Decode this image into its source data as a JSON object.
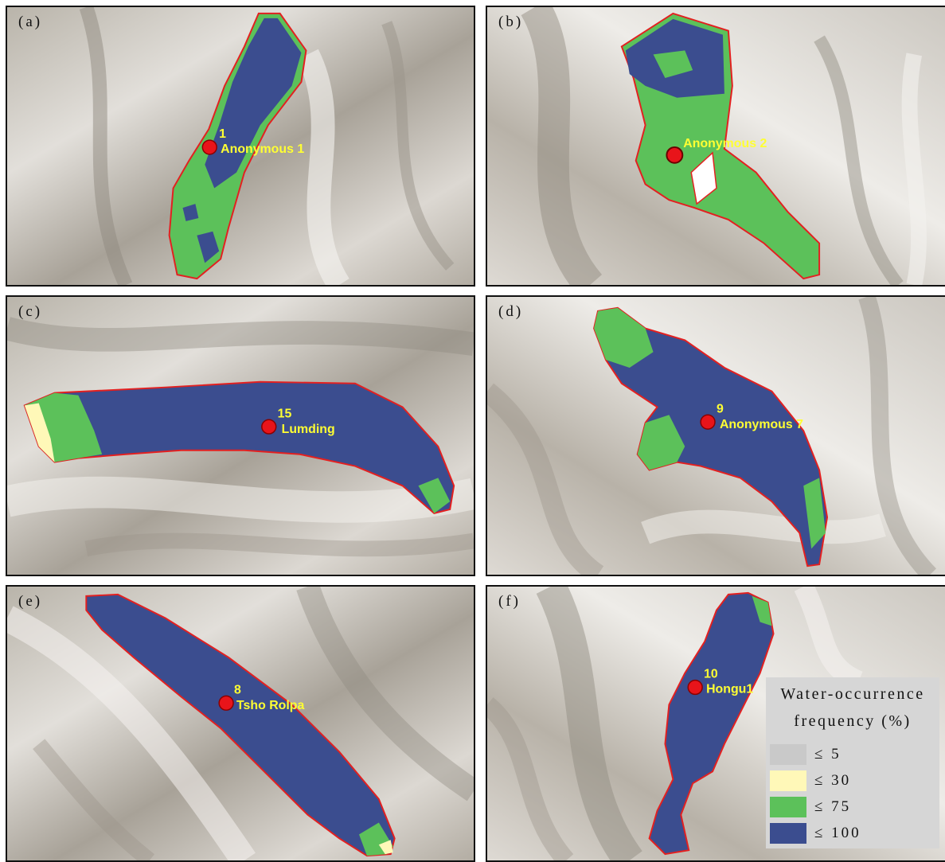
{
  "colors": {
    "freq_5": "#c9c9c9",
    "freq_30": "#fff8b8",
    "freq_75": "#5cc15a",
    "freq_100": "#3b4d8f",
    "outline": "#e32020",
    "marker": "#e8141a",
    "label": "#ffff33"
  },
  "panels": [
    {
      "id": "a",
      "label": "(a)",
      "lake_number": "1",
      "lake_name": "Anonymous 1"
    },
    {
      "id": "b",
      "label": "(b)",
      "lake_number": "",
      "lake_name": "Anonymous 2"
    },
    {
      "id": "c",
      "label": "(c)",
      "lake_number": "15",
      "lake_name": "Lumding"
    },
    {
      "id": "d",
      "label": "(d)",
      "lake_number": "9",
      "lake_name": "Anonymous 7"
    },
    {
      "id": "e",
      "label": "(e)",
      "lake_number": "8",
      "lake_name": "Tsho Rolpa"
    },
    {
      "id": "f",
      "label": "(f)",
      "lake_number": "10",
      "lake_name": "Hongu1"
    }
  ],
  "legend": {
    "title_line1": "Water-occurrence",
    "title_line2": "frequency (%)",
    "items": [
      {
        "label": "≤ 5",
        "color": "#c9c9c9"
      },
      {
        "label": "≤ 30",
        "color": "#fff8b8"
      },
      {
        "label": "≤ 75",
        "color": "#5cc15a"
      },
      {
        "label": "≤ 100",
        "color": "#3b4d8f"
      }
    ]
  }
}
